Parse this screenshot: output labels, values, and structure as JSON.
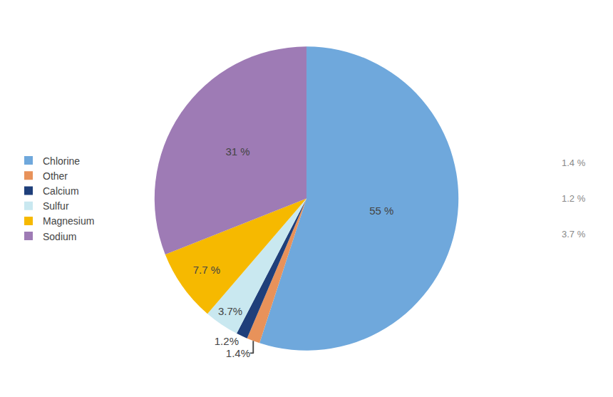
{
  "chart_data": {
    "type": "pie",
    "categories": [
      "Chlorine",
      "Other",
      "Calcium",
      "Sulfur",
      "Magnesium",
      "Sodium"
    ],
    "values": [
      55,
      1.4,
      1.2,
      3.7,
      7.7,
      31
    ],
    "colors": [
      "#6fa8dc",
      "#e8925a",
      "#1f3f7a",
      "#c9e8f0",
      "#f6b900",
      "#9e7bb5"
    ],
    "data_labels": true,
    "value_labels": [
      "55 %",
      "1.4%",
      "1.2%",
      "3.7%",
      "7.7 %",
      "31 %"
    ],
    "annotations": [
      "1.4 %",
      "1.2 %",
      "3.7 %"
    ],
    "legend": "left"
  }
}
